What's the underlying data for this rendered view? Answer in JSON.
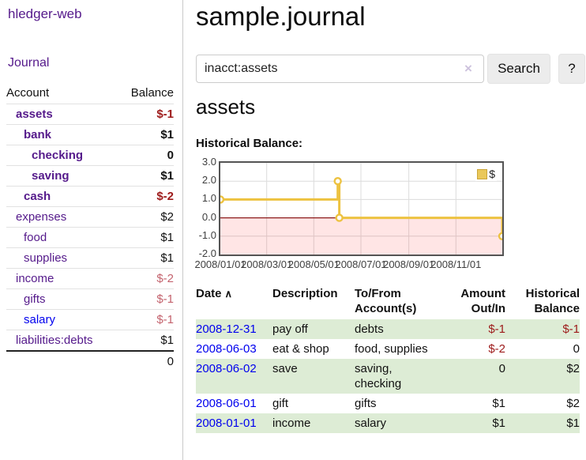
{
  "app": {
    "brand": "hledger-web",
    "nav_journal": "Journal"
  },
  "sidebar": {
    "header": {
      "account": "Account",
      "balance": "Balance"
    },
    "accounts": [
      {
        "name": "assets",
        "balance": "$-1"
      },
      {
        "name": "bank",
        "balance": "$1"
      },
      {
        "name": "checking",
        "balance": "0"
      },
      {
        "name": "saving",
        "balance": "$1"
      },
      {
        "name": "cash",
        "balance": "$-2"
      },
      {
        "name": "expenses",
        "balance": "$2"
      },
      {
        "name": "food",
        "balance": "$1"
      },
      {
        "name": "supplies",
        "balance": "$1"
      },
      {
        "name": "income",
        "balance": "$-2"
      },
      {
        "name": "gifts",
        "balance": "$-1"
      },
      {
        "name": "salary",
        "balance": "$-1"
      },
      {
        "name": "liabilities:debts",
        "balance": "$1"
      }
    ],
    "total": "0"
  },
  "main": {
    "title": "sample.journal",
    "search": {
      "value": "inacct:assets",
      "clear_icon": "×",
      "button": "Search",
      "help": "?"
    },
    "account_heading": "assets",
    "chart_heading": "Historical Balance:"
  },
  "chart_data": {
    "type": "line",
    "title": "Historical Balance:",
    "step": true,
    "series": [
      {
        "name": "$",
        "color": "#edc240",
        "points": [
          {
            "date": "2008/01/01",
            "day": 0,
            "value": 1.0
          },
          {
            "date": "2008/06/01",
            "day": 152,
            "value": 2.0
          },
          {
            "date": "2008/06/03",
            "day": 154,
            "value": 0.0
          },
          {
            "date": "2008/12/31",
            "day": 365,
            "value": -1.0
          }
        ]
      }
    ],
    "x_range_days": [
      0,
      365
    ],
    "ylim": [
      -2,
      3
    ],
    "x_ticks": [
      {
        "day": 0,
        "label": "2008/01/01"
      },
      {
        "day": 60,
        "label": "2008/03/01"
      },
      {
        "day": 121,
        "label": "2008/05/01"
      },
      {
        "day": 182,
        "label": "2008/07/01"
      },
      {
        "day": 244,
        "label": "2008/09/01"
      },
      {
        "day": 305,
        "label": "2008/11/01"
      }
    ],
    "y_ticks": [
      {
        "value": 3,
        "label": "3.0"
      },
      {
        "value": 2,
        "label": "2.0"
      },
      {
        "value": 1,
        "label": "1.0"
      },
      {
        "value": 0,
        "label": "0.0"
      },
      {
        "value": -1,
        "label": "-1.0"
      },
      {
        "value": -2,
        "label": "-2.0"
      }
    ],
    "grid": true,
    "grid_color": "#dcdcdc",
    "negative_fill": "rgba(255,0,0,0.10)",
    "zero_line_color": "#8b1a1a",
    "legend": {
      "position": "top-right",
      "label": "$"
    }
  },
  "register": {
    "headers": {
      "date": "Date",
      "sort_indicator": "∧",
      "description": "Description",
      "accounts": "To/From Account(s)",
      "amount": "Amount Out/In",
      "balance": "Historical Balance"
    },
    "rows": [
      {
        "date": "2008-12-31",
        "description": "pay off",
        "accounts": "debts",
        "amount": "$-1",
        "balance": "$-1"
      },
      {
        "date": "2008-06-03",
        "description": "eat & shop",
        "accounts": "food, supplies",
        "amount": "$-2",
        "balance": "0"
      },
      {
        "date": "2008-06-02",
        "description": "save",
        "accounts": "saving, checking",
        "amount": "0",
        "balance": "$2"
      },
      {
        "date": "2008-06-01",
        "description": "gift",
        "accounts": "gifts",
        "amount": "$1",
        "balance": "$2"
      },
      {
        "date": "2008-01-01",
        "description": "income",
        "accounts": "salary",
        "amount": "$1",
        "balance": "$1"
      }
    ]
  }
}
